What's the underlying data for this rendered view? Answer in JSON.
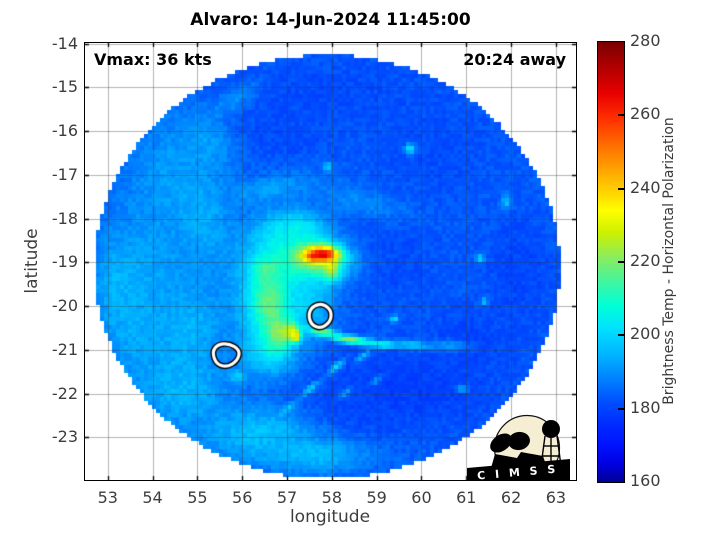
{
  "annotations": {
    "vmax": "Vmax: 36 kts",
    "away": "20:24 away"
  },
  "logo": {
    "text": "C I M S S"
  },
  "chart_data": {
    "type": "heatmap",
    "title": "Alvaro: 14-Jun-2024 11:45:00",
    "xlabel": "longitude",
    "ylabel": "latitude",
    "xlim": [
      52.47,
      63.47
    ],
    "ylim": [
      -24.0,
      -13.96
    ],
    "xticks": [
      53,
      54,
      55,
      56,
      57,
      58,
      59,
      60,
      61,
      62,
      63
    ],
    "yticks": [
      -14,
      -15,
      -16,
      -17,
      -18,
      -19,
      -20,
      -21,
      -22,
      -23
    ],
    "grid": true,
    "grid_rgba": "rgba(55,55,55,0.38)",
    "colorbar": {
      "label": "Brightness Temp - Horizontal Polarization",
      "min": 160,
      "max": 280,
      "ticks": [
        160,
        180,
        200,
        220,
        240,
        260,
        280
      ],
      "stops": [
        [
          160,
          "#7a0000"
        ],
        [
          167,
          "#b20000"
        ],
        [
          174,
          "#e80000"
        ],
        [
          181,
          "#ff3000"
        ],
        [
          188,
          "#ff6c00"
        ],
        [
          195,
          "#ffa600"
        ],
        [
          201,
          "#ffd400"
        ],
        [
          206,
          "#ffff00"
        ],
        [
          212,
          "#ccf000"
        ],
        [
          219,
          "#88ec62"
        ],
        [
          226,
          "#3af6a6"
        ],
        [
          232,
          "#00ffd6"
        ],
        [
          238,
          "#00e2ff"
        ],
        [
          245,
          "#00b6ff"
        ],
        [
          252,
          "#0080ff"
        ],
        [
          258,
          "#0050ff"
        ],
        [
          264,
          "#002cff"
        ],
        [
          270,
          "#0012ff"
        ],
        [
          275,
          "#0000e2"
        ],
        [
          280,
          "#000096"
        ]
      ]
    },
    "swath": {
      "center": [
        57.9,
        -19.1
      ],
      "rx_deg": 5.2,
      "ry_deg": 4.85
    },
    "base_temp_k": 256,
    "features_format": "[lon, lat, rx_deg, ry_deg, temp_K, rot_deg]",
    "features": [
      [
        57.9,
        -15.1,
        3.2,
        1.1,
        259,
        0
      ],
      [
        60.3,
        -16.4,
        1.8,
        1.5,
        259,
        0
      ],
      [
        62.2,
        -19.2,
        1.1,
        1.8,
        260,
        0
      ],
      [
        56.9,
        -16.1,
        1.6,
        0.8,
        259,
        0
      ],
      [
        59.3,
        -18.9,
        1.6,
        1.6,
        259,
        0
      ],
      [
        59.7,
        -21.8,
        2.6,
        1.2,
        261,
        -8
      ],
      [
        57.9,
        -22.5,
        2.0,
        0.9,
        261,
        0
      ],
      [
        61.0,
        -20.8,
        1.4,
        1.0,
        260,
        0
      ],
      [
        54.0,
        -19.0,
        1.3,
        2.4,
        248,
        0
      ],
      [
        53.6,
        -20.3,
        0.9,
        1.5,
        246,
        0
      ],
      [
        54.6,
        -21.9,
        1.4,
        1.1,
        245,
        0
      ],
      [
        54.3,
        -17.0,
        1.0,
        1.5,
        249,
        0
      ],
      [
        55.2,
        -16.2,
        0.7,
        1.0,
        248,
        30
      ],
      [
        55.8,
        -15.3,
        0.8,
        0.3,
        250,
        35
      ],
      [
        55.1,
        -17.9,
        0.8,
        1.6,
        246,
        15
      ],
      [
        54.8,
        -20.6,
        0.9,
        1.4,
        245,
        -15
      ],
      [
        56.4,
        -22.9,
        1.7,
        0.8,
        243,
        0
      ],
      [
        57.6,
        -23.4,
        1.5,
        0.5,
        244,
        0
      ],
      [
        53.2,
        -19.5,
        0.6,
        1.2,
        245,
        0
      ],
      [
        56.6,
        -17.3,
        1.3,
        0.35,
        248,
        10
      ],
      [
        58.6,
        -17.6,
        1.5,
        0.4,
        251,
        -15
      ],
      [
        56.6,
        -19.8,
        1.0,
        1.5,
        238,
        0
      ],
      [
        56.9,
        -18.7,
        0.9,
        0.9,
        236,
        0
      ],
      [
        57.2,
        -18.25,
        0.8,
        0.5,
        236,
        0
      ],
      [
        56.6,
        -21.0,
        0.7,
        0.7,
        238,
        0
      ],
      [
        57.3,
        -19.9,
        0.8,
        0.9,
        240,
        0
      ],
      [
        56.6,
        -19.9,
        0.45,
        0.9,
        222,
        0
      ],
      [
        56.8,
        -20.6,
        0.35,
        0.5,
        218,
        0
      ],
      [
        56.55,
        -19.2,
        0.4,
        0.35,
        224,
        0
      ],
      [
        57.1,
        -20.6,
        0.22,
        0.25,
        207,
        0
      ],
      [
        57.2,
        -20.7,
        0.1,
        0.12,
        198,
        0
      ],
      [
        57.6,
        -19.0,
        1.0,
        0.6,
        228,
        0
      ],
      [
        57.7,
        -18.85,
        0.6,
        0.35,
        207,
        0
      ],
      [
        58.0,
        -19.15,
        0.22,
        0.3,
        210,
        0
      ],
      [
        57.75,
        -18.83,
        0.45,
        0.22,
        188,
        0
      ],
      [
        57.78,
        -18.8,
        0.32,
        0.13,
        171,
        0
      ],
      [
        57.55,
        -18.87,
        0.1,
        0.08,
        176,
        0
      ],
      [
        57.8,
        -20.6,
        0.45,
        0.12,
        220,
        -10
      ],
      [
        58.45,
        -20.78,
        0.5,
        0.11,
        216,
        -6
      ],
      [
        59.1,
        -20.88,
        0.45,
        0.1,
        230,
        -4
      ],
      [
        59.8,
        -20.9,
        0.5,
        0.12,
        240,
        -4
      ],
      [
        60.6,
        -20.9,
        0.6,
        0.15,
        249,
        -4
      ],
      [
        58.1,
        -21.4,
        0.3,
        0.09,
        238,
        40
      ],
      [
        58.7,
        -21.15,
        0.25,
        0.08,
        241,
        40
      ],
      [
        57.5,
        -21.9,
        0.3,
        0.09,
        240,
        40
      ],
      [
        57.0,
        -22.35,
        0.3,
        0.1,
        242,
        40
      ],
      [
        58.3,
        -22.0,
        0.22,
        0.08,
        244,
        40
      ],
      [
        59.0,
        -21.7,
        0.2,
        0.07,
        245,
        40
      ],
      [
        55.35,
        -14.55,
        0.3,
        0.12,
        233,
        30
      ],
      [
        60.2,
        -14.45,
        0.22,
        0.15,
        226,
        0
      ],
      [
        59.75,
        -16.4,
        0.15,
        0.15,
        238,
        0
      ],
      [
        57.9,
        -16.8,
        0.12,
        0.12,
        238,
        0
      ],
      [
        61.9,
        -17.6,
        0.15,
        0.2,
        243,
        0
      ],
      [
        61.3,
        -18.9,
        0.12,
        0.1,
        238,
        0
      ],
      [
        61.4,
        -19.9,
        0.1,
        0.1,
        240,
        0
      ],
      [
        61.7,
        -15.6,
        0.15,
        0.15,
        245,
        0
      ],
      [
        59.4,
        -20.3,
        0.12,
        0.1,
        236,
        0
      ],
      [
        60.9,
        -21.9,
        0.15,
        0.1,
        243,
        0
      ],
      [
        55.9,
        -21.6,
        0.2,
        0.15,
        239,
        0
      ]
    ],
    "white_contours": [
      [
        [
          57.6,
          -19.98
        ],
        [
          57.82,
          -19.95
        ],
        [
          58.0,
          -20.12
        ],
        [
          57.96,
          -20.38
        ],
        [
          57.72,
          -20.52
        ],
        [
          57.52,
          -20.4
        ],
        [
          57.48,
          -20.15
        ]
      ],
      [
        [
          55.45,
          -20.88
        ],
        [
          55.7,
          -20.85
        ],
        [
          55.95,
          -21.0
        ],
        [
          55.9,
          -21.25
        ],
        [
          55.65,
          -21.4
        ],
        [
          55.42,
          -21.32
        ],
        [
          55.33,
          -21.05
        ]
      ]
    ]
  }
}
